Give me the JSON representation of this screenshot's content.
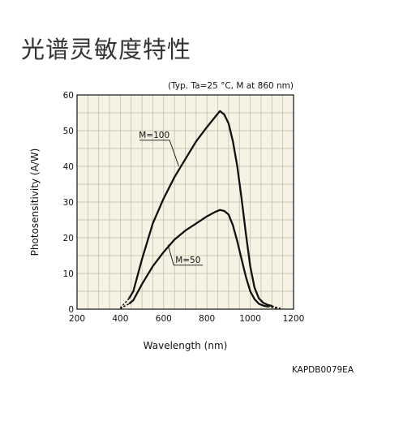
{
  "heading": "光谱灵敏度特性",
  "chart_data": {
    "type": "line",
    "title": "",
    "condition_note": "(Typ. Ta=25 °C, M at 860 nm)",
    "xlabel": "Wavelength (nm)",
    "ylabel": "Photosensitivity (A/W)",
    "xlim": [
      200,
      1200
    ],
    "ylim": [
      0,
      60
    ],
    "x_ticks": [
      200,
      400,
      600,
      800,
      1000,
      1200
    ],
    "y_ticks": [
      0,
      10,
      20,
      30,
      40,
      50,
      60
    ],
    "x_ticks_labels": [
      "200",
      "400",
      "600",
      "800",
      "1000",
      "1200"
    ],
    "y_ticks_labels": [
      "0",
      "10",
      "20",
      "30",
      "40",
      "50",
      "60"
    ],
    "grid": true,
    "series": [
      {
        "name": "M=100",
        "solid": [
          [
            440,
            3
          ],
          [
            460,
            5
          ],
          [
            500,
            14
          ],
          [
            550,
            24
          ],
          [
            600,
            31
          ],
          [
            650,
            37
          ],
          [
            700,
            42
          ],
          [
            750,
            47
          ],
          [
            800,
            51
          ],
          [
            840,
            54
          ],
          [
            860,
            55.5
          ],
          [
            880,
            54.5
          ],
          [
            900,
            52
          ],
          [
            920,
            47
          ],
          [
            940,
            40
          ],
          [
            960,
            31
          ],
          [
            980,
            21
          ],
          [
            1000,
            12
          ],
          [
            1020,
            6
          ],
          [
            1040,
            3
          ],
          [
            1060,
            1.8
          ],
          [
            1080,
            1.2
          ],
          [
            1100,
            0.9
          ]
        ],
        "dashed": [
          [
            400,
            0.3
          ],
          [
            440,
            3
          ],
          [
            1100,
            0.9
          ],
          [
            1120,
            0.5
          ],
          [
            1140,
            0.2
          ]
        ],
        "label_at": [
          650,
          48
        ]
      },
      {
        "name": "M=50",
        "solid": [
          [
            440,
            1.5
          ],
          [
            460,
            2.5
          ],
          [
            500,
            7
          ],
          [
            550,
            12
          ],
          [
            600,
            16
          ],
          [
            650,
            19.5
          ],
          [
            700,
            22
          ],
          [
            750,
            24
          ],
          [
            800,
            26
          ],
          [
            840,
            27.3
          ],
          [
            860,
            27.8
          ],
          [
            880,
            27.5
          ],
          [
            900,
            26.5
          ],
          [
            920,
            23.5
          ],
          [
            940,
            19
          ],
          [
            960,
            14
          ],
          [
            980,
            9
          ],
          [
            1000,
            5
          ],
          [
            1020,
            2.8
          ],
          [
            1040,
            1.5
          ],
          [
            1060,
            1.0
          ],
          [
            1080,
            0.7
          ]
        ],
        "dashed": [
          [
            400,
            0.2
          ],
          [
            440,
            1.5
          ],
          [
            1080,
            0.7
          ],
          [
            1110,
            0.4
          ],
          [
            1130,
            0.2
          ]
        ],
        "label_at": [
          770,
          13
        ]
      }
    ],
    "figure_code": "KAPDB0079EA"
  }
}
